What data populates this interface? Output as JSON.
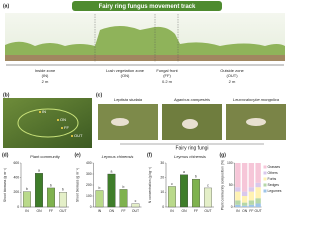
{
  "figure": {
    "a": {
      "label": "(a)",
      "banner": "Fairy ring fungus movement track",
      "zones": [
        {
          "name": "Inside zone",
          "code": "(IN)",
          "width": "2 m"
        },
        {
          "name": "Lush vegetation zone",
          "code": "(ON)"
        },
        {
          "name": "Fungal front",
          "code": "(FF)",
          "width": "0.2 m"
        },
        {
          "name": "Outside zone",
          "code": "(OUT)",
          "width": "2 m"
        }
      ]
    },
    "b": {
      "label": "(b)",
      "points": [
        "IN",
        "ON",
        "FF",
        "OUT"
      ]
    },
    "c": {
      "label": "(c)",
      "species": [
        "Leptista studaia",
        "Agaricus campestris",
        "Leucocalocybe mongolica"
      ],
      "caption": "Fairy ring fungi"
    }
  },
  "chart_data": [
    {
      "type": "bar",
      "label": "(d)",
      "title": "Plant community",
      "y_label": "Shoot biomass (g m⁻²)",
      "categories": [
        "IN",
        "ON",
        "FF",
        "OUT"
      ],
      "values": [
        210,
        460,
        260,
        200
      ],
      "letters": [
        "b",
        "a",
        "b",
        "b"
      ],
      "colors": [
        "#b9d98a",
        "#3f7d2a",
        "#7fb24e",
        "#e4efc8"
      ],
      "ylim": [
        0,
        600
      ],
      "yticks": [
        0,
        200,
        400,
        600
      ]
    },
    {
      "type": "bar",
      "label": "(e)",
      "title": "Leymus chinensis",
      "y_label": "Shoot biomass (g m⁻²)",
      "categories": [
        "IN",
        "ON",
        "FF",
        "OUT"
      ],
      "values": [
        150,
        300,
        160,
        30
      ],
      "letters": [
        "b",
        "a",
        "b",
        "c"
      ],
      "colors": [
        "#b9d98a",
        "#3f7d2a",
        "#7fb24e",
        "#e4efc8"
      ],
      "ylim": [
        0,
        400
      ],
      "yticks": [
        0,
        100,
        200,
        300,
        400
      ]
    },
    {
      "type": "bar",
      "label": "(f)",
      "title": "Leymus chinensis",
      "y_label": "N concentration (g kg⁻¹)",
      "categories": [
        "IN",
        "ON",
        "FF",
        "OUT"
      ],
      "values": [
        14,
        22,
        19,
        13
      ],
      "letters": [
        "c",
        "a",
        "b",
        "c"
      ],
      "colors": [
        "#b9d98a",
        "#3f7d2a",
        "#7fb24e",
        "#e4efc8"
      ],
      "ylim": [
        0,
        30
      ],
      "yticks": [
        0,
        10,
        20,
        30
      ]
    },
    {
      "type": "stacked",
      "label": "(g)",
      "y_label": "Plant community composition (%)",
      "categories": [
        "IN",
        "ON",
        "FF",
        "OUT"
      ],
      "ylim": [
        0,
        100
      ],
      "yticks": [
        0,
        50,
        100
      ],
      "series": [
        {
          "name": "Legumes",
          "color": "#9fc5e8",
          "values": [
            5,
            3,
            5,
            8
          ]
        },
        {
          "name": "Sedges",
          "color": "#b6d7a8",
          "values": [
            10,
            7,
            10,
            12
          ]
        },
        {
          "name": "Forbs",
          "color": "#fff2b3",
          "values": [
            20,
            15,
            20,
            25
          ]
        },
        {
          "name": "Others",
          "color": "#d9c8ec",
          "values": [
            10,
            10,
            10,
            10
          ]
        },
        {
          "name": "Grasses",
          "color": "#f6c6d8",
          "values": [
            55,
            65,
            55,
            45
          ]
        }
      ]
    }
  ]
}
